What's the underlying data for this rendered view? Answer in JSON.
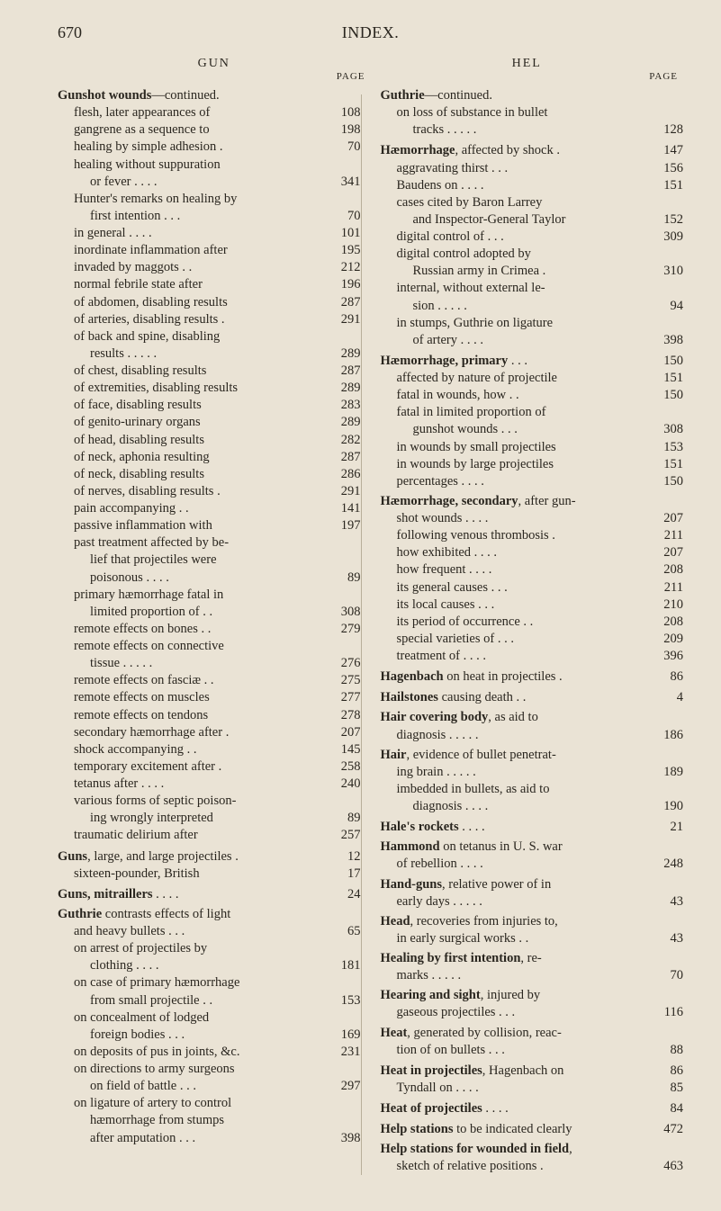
{
  "colors": {
    "background": "#eae3d5",
    "text": "#2a261f",
    "divider": "#b8af9a"
  },
  "typography": {
    "body_fontsize_pt": 10.5,
    "heading_fontsize_pt": 13,
    "font_family": "Times New Roman"
  },
  "header": {
    "page_number": "670",
    "book_title": "INDEX."
  },
  "col_heads": {
    "left": "GUN",
    "right": "HEL"
  },
  "page_label": "PAGE",
  "left": [
    {
      "t": "head",
      "bold": "Gunshot wounds",
      "rest": "—continued."
    },
    {
      "t": "item",
      "indent": 1,
      "text": "flesh, later appearances of",
      "page": "108"
    },
    {
      "t": "item",
      "indent": 1,
      "text": "gangrene as a sequence to",
      "page": "198"
    },
    {
      "t": "item",
      "indent": 1,
      "text": "healing by simple adhesion .",
      "page": "70"
    },
    {
      "t": "item",
      "indent": 1,
      "text": "healing without suppuration",
      "page": ""
    },
    {
      "t": "item",
      "indent": 2,
      "text": "or fever   . . . .",
      "page": "341"
    },
    {
      "t": "item",
      "indent": 1,
      "text": "Hunter's remarks on healing by",
      "page": ""
    },
    {
      "t": "item",
      "indent": 2,
      "text": "first intention   . . .",
      "page": "70"
    },
    {
      "t": "item",
      "indent": 1,
      "text": "in general   . . . .",
      "page": "101"
    },
    {
      "t": "item",
      "indent": 1,
      "text": "inordinate inflammation after",
      "page": "195"
    },
    {
      "t": "item",
      "indent": 1,
      "text": "invaded by maggots   . .",
      "page": "212"
    },
    {
      "t": "item",
      "indent": 1,
      "text": "normal febrile state after",
      "page": "196"
    },
    {
      "t": "item",
      "indent": 1,
      "text": "of abdomen, disabling results",
      "page": "287"
    },
    {
      "t": "item",
      "indent": 1,
      "text": "of arteries, disabling results .",
      "page": "291"
    },
    {
      "t": "item",
      "indent": 1,
      "text": "of back and spine, disabling",
      "page": ""
    },
    {
      "t": "item",
      "indent": 2,
      "text": "results . . . . .",
      "page": "289"
    },
    {
      "t": "item",
      "indent": 1,
      "text": "of chest, disabling results",
      "page": "287"
    },
    {
      "t": "item",
      "indent": 1,
      "text": "of extremities, disabling results",
      "page": "289"
    },
    {
      "t": "item",
      "indent": 1,
      "text": "of face, disabling results",
      "page": "283"
    },
    {
      "t": "item",
      "indent": 1,
      "text": "of genito-urinary organs",
      "page": "289"
    },
    {
      "t": "item",
      "indent": 1,
      "text": "of head, disabling results",
      "page": "282"
    },
    {
      "t": "item",
      "indent": 1,
      "text": "of neck, aphonia resulting",
      "page": "287"
    },
    {
      "t": "item",
      "indent": 1,
      "text": "of neck, disabling results",
      "page": "286"
    },
    {
      "t": "item",
      "indent": 1,
      "text": "of nerves, disabling results .",
      "page": "291"
    },
    {
      "t": "item",
      "indent": 1,
      "text": "pain accompanying  . .",
      "page": "141"
    },
    {
      "t": "item",
      "indent": 1,
      "text": "passive inflammation with",
      "page": "197"
    },
    {
      "t": "item",
      "indent": 1,
      "text": "past treatment affected by be-",
      "page": ""
    },
    {
      "t": "item",
      "indent": 2,
      "text": "lief that projectiles were",
      "page": ""
    },
    {
      "t": "item",
      "indent": 2,
      "text": "poisonous  . . . .",
      "page": "89"
    },
    {
      "t": "item",
      "indent": 1,
      "text": "primary hæmorrhage fatal in",
      "page": ""
    },
    {
      "t": "item",
      "indent": 2,
      "text": "limited proportion of . .",
      "page": "308"
    },
    {
      "t": "item",
      "indent": 1,
      "text": "remote effects on bones . .",
      "page": "279"
    },
    {
      "t": "item",
      "indent": 1,
      "text": "remote effects on connective",
      "page": ""
    },
    {
      "t": "item",
      "indent": 2,
      "text": "tissue  . . . . .",
      "page": "276"
    },
    {
      "t": "item",
      "indent": 1,
      "text": "remote effects on fasciæ . .",
      "page": "275"
    },
    {
      "t": "item",
      "indent": 1,
      "text": "remote effects on muscles",
      "page": "277"
    },
    {
      "t": "item",
      "indent": 1,
      "text": "remote effects on tendons",
      "page": "278"
    },
    {
      "t": "item",
      "indent": 1,
      "text": "secondary hæmorrhage after .",
      "page": "207"
    },
    {
      "t": "item",
      "indent": 1,
      "text": "shock accompanying  . .",
      "page": "145"
    },
    {
      "t": "item",
      "indent": 1,
      "text": "temporary excitement after .",
      "page": "258"
    },
    {
      "t": "item",
      "indent": 1,
      "text": "tetanus after . . . .",
      "page": "240"
    },
    {
      "t": "item",
      "indent": 1,
      "text": "various forms of septic poison-",
      "page": ""
    },
    {
      "t": "item",
      "indent": 2,
      "text": "ing wrongly interpreted",
      "page": "89"
    },
    {
      "t": "item",
      "indent": 1,
      "text": "traumatic delirium after",
      "page": "257"
    },
    {
      "t": "headrow",
      "bold": "Guns",
      "rest": ", large, and large projectiles .",
      "page": "12"
    },
    {
      "t": "item",
      "indent": 1,
      "text": "sixteen-pounder, British",
      "page": "17"
    },
    {
      "t": "headrow",
      "bold": "Guns, mitraillers",
      "rest": " . . . .",
      "page": "24"
    },
    {
      "t": "head",
      "bold": "Guthrie",
      "rest": " contrasts effects of light"
    },
    {
      "t": "item",
      "indent": 1,
      "text": "and heavy bullets  . . .",
      "page": "65"
    },
    {
      "t": "item",
      "indent": 1,
      "text": "on arrest of projectiles by",
      "page": ""
    },
    {
      "t": "item",
      "indent": 2,
      "text": "clothing  . . . .",
      "page": "181"
    },
    {
      "t": "item",
      "indent": 1,
      "text": "on case of primary hæmorrhage",
      "page": ""
    },
    {
      "t": "item",
      "indent": 2,
      "text": "from small projectile . .",
      "page": "153"
    },
    {
      "t": "item",
      "indent": 1,
      "text": "on concealment of lodged",
      "page": ""
    },
    {
      "t": "item",
      "indent": 2,
      "text": "foreign bodies  . . .",
      "page": "169"
    },
    {
      "t": "item",
      "indent": 1,
      "text": "on deposits of pus in joints, &c.",
      "page": "231"
    },
    {
      "t": "item",
      "indent": 1,
      "text": "on directions to army surgeons",
      "page": ""
    },
    {
      "t": "item",
      "indent": 2,
      "text": "on field of battle . . .",
      "page": "297"
    },
    {
      "t": "item",
      "indent": 1,
      "text": "on ligature of artery to control",
      "page": ""
    },
    {
      "t": "item",
      "indent": 2,
      "text": "hæmorrhage from stumps",
      "page": ""
    },
    {
      "t": "item",
      "indent": 2,
      "text": "after amputation . . .",
      "page": "398"
    }
  ],
  "right": [
    {
      "t": "head",
      "bold": "Guthrie",
      "rest": "—continued."
    },
    {
      "t": "item",
      "indent": 1,
      "text": "on loss of substance in bullet",
      "page": ""
    },
    {
      "t": "item",
      "indent": 2,
      "text": "tracks . . . . .",
      "page": "128"
    },
    {
      "t": "headrow",
      "bold": "Hæmorrhage",
      "rest": ", affected by shock .",
      "page": "147"
    },
    {
      "t": "item",
      "indent": 1,
      "text": "aggravating thirst . . .",
      "page": "156"
    },
    {
      "t": "item",
      "indent": 1,
      "text": "Baudens on  . . . .",
      "page": "151"
    },
    {
      "t": "item",
      "indent": 1,
      "text": "cases cited by Baron Larrey",
      "page": ""
    },
    {
      "t": "item",
      "indent": 2,
      "text": "and Inspector-General Taylor",
      "page": "152"
    },
    {
      "t": "item",
      "indent": 1,
      "text": "digital control of . . .",
      "page": "309"
    },
    {
      "t": "item",
      "indent": 1,
      "text": "digital control adopted by",
      "page": ""
    },
    {
      "t": "item",
      "indent": 2,
      "text": "Russian army in Crimea .",
      "page": "310"
    },
    {
      "t": "item",
      "indent": 1,
      "text": "internal, without external le-",
      "page": ""
    },
    {
      "t": "item",
      "indent": 2,
      "text": "sion  . . . . .",
      "page": "94"
    },
    {
      "t": "item",
      "indent": 1,
      "text": "in stumps, Guthrie on ligature",
      "page": ""
    },
    {
      "t": "item",
      "indent": 2,
      "text": "of artery  . . . .",
      "page": "398"
    },
    {
      "t": "headrow",
      "bold": "Hæmorrhage, primary",
      "rest": " . . .",
      "page": "150"
    },
    {
      "t": "item",
      "indent": 1,
      "text": "affected by nature of projectile",
      "page": "151"
    },
    {
      "t": "item",
      "indent": 1,
      "text": "fatal in wounds, how  . .",
      "page": "150"
    },
    {
      "t": "item",
      "indent": 1,
      "text": "fatal in limited proportion of",
      "page": ""
    },
    {
      "t": "item",
      "indent": 2,
      "text": "gunshot wounds . . .",
      "page": "308"
    },
    {
      "t": "item",
      "indent": 1,
      "text": "in wounds by small projectiles",
      "page": "153"
    },
    {
      "t": "item",
      "indent": 1,
      "text": "in wounds by large projectiles",
      "page": "151"
    },
    {
      "t": "item",
      "indent": 1,
      "text": "percentages  . . . .",
      "page": "150"
    },
    {
      "t": "head",
      "bold": "Hæmorrhage, secondary",
      "rest": ", after gun-"
    },
    {
      "t": "item",
      "indent": 1,
      "text": "shot wounds  . . . .",
      "page": "207"
    },
    {
      "t": "item",
      "indent": 1,
      "text": "following venous thrombosis .",
      "page": "211"
    },
    {
      "t": "item",
      "indent": 1,
      "text": "how exhibited . . . .",
      "page": "207"
    },
    {
      "t": "item",
      "indent": 1,
      "text": "how frequent . . . .",
      "page": "208"
    },
    {
      "t": "item",
      "indent": 1,
      "text": "its general causes . . .",
      "page": "211"
    },
    {
      "t": "item",
      "indent": 1,
      "text": "its local causes  . . .",
      "page": "210"
    },
    {
      "t": "item",
      "indent": 1,
      "text": "its period of occurrence . .",
      "page": "208"
    },
    {
      "t": "item",
      "indent": 1,
      "text": "special varieties of . . .",
      "page": "209"
    },
    {
      "t": "item",
      "indent": 1,
      "text": "treatment of . . . .",
      "page": "396"
    },
    {
      "t": "headrow",
      "bold": "Hagenbach",
      "rest": " on heat in projectiles .",
      "page": "86"
    },
    {
      "t": "headrow",
      "bold": "Hailstones",
      "rest": " causing death  . .",
      "page": "4"
    },
    {
      "t": "head",
      "bold": "Hair covering body",
      "rest": ", as aid to"
    },
    {
      "t": "item",
      "indent": 1,
      "text": "diagnosis  . . . . .",
      "page": "186"
    },
    {
      "t": "head",
      "bold": "Hair",
      "rest": ", evidence of bullet penetrat-"
    },
    {
      "t": "item",
      "indent": 1,
      "text": "ing brain  . . . . .",
      "page": "189"
    },
    {
      "t": "item",
      "indent": 1,
      "text": "imbedded in bullets, as aid to",
      "page": ""
    },
    {
      "t": "item",
      "indent": 2,
      "text": "diagnosis  . . . .",
      "page": "190"
    },
    {
      "t": "headrow",
      "bold": "Hale's rockets",
      "rest": "  . . . .",
      "page": "21"
    },
    {
      "t": "head",
      "bold": "Hammond",
      "rest": " on tetanus in U. S. war"
    },
    {
      "t": "item",
      "indent": 1,
      "text": "of rebellion  . . . .",
      "page": "248"
    },
    {
      "t": "head",
      "bold": "Hand-guns",
      "rest": ", relative power of in"
    },
    {
      "t": "item",
      "indent": 1,
      "text": "early days . . . . .",
      "page": "43"
    },
    {
      "t": "head",
      "bold": "Head",
      "rest": ", recoveries from injuries to,"
    },
    {
      "t": "item",
      "indent": 1,
      "text": "in early surgical works  . .",
      "page": "43"
    },
    {
      "t": "head",
      "bold": "Healing by first intention",
      "rest": ", re-"
    },
    {
      "t": "item",
      "indent": 1,
      "text": "marks  . . . . .",
      "page": "70"
    },
    {
      "t": "head",
      "bold": "Hearing and sight",
      "rest": ", injured by"
    },
    {
      "t": "item",
      "indent": 1,
      "text": "gaseous projectiles  . . .",
      "page": "116"
    },
    {
      "t": "head",
      "bold": "Heat",
      "rest": ", generated by collision, reac-"
    },
    {
      "t": "item",
      "indent": 1,
      "text": "tion of on bullets  . . .",
      "page": "88"
    },
    {
      "t": "headrow",
      "bold": "Heat in projectiles",
      "rest": ", Hagenbach on",
      "page": "86"
    },
    {
      "t": "item",
      "indent": 1,
      "text": "Tyndall on  . . . .",
      "page": "85"
    },
    {
      "t": "headrow",
      "bold": "Heat of projectiles",
      "rest": " . . . .",
      "page": "84"
    },
    {
      "t": "headrow",
      "bold": "Help stations",
      "rest": " to be indicated clearly",
      "page": "472"
    },
    {
      "t": "head",
      "bold": "Help stations for wounded in field",
      "rest": ","
    },
    {
      "t": "item",
      "indent": 1,
      "text": "sketch of relative positions .",
      "page": "463"
    }
  ]
}
